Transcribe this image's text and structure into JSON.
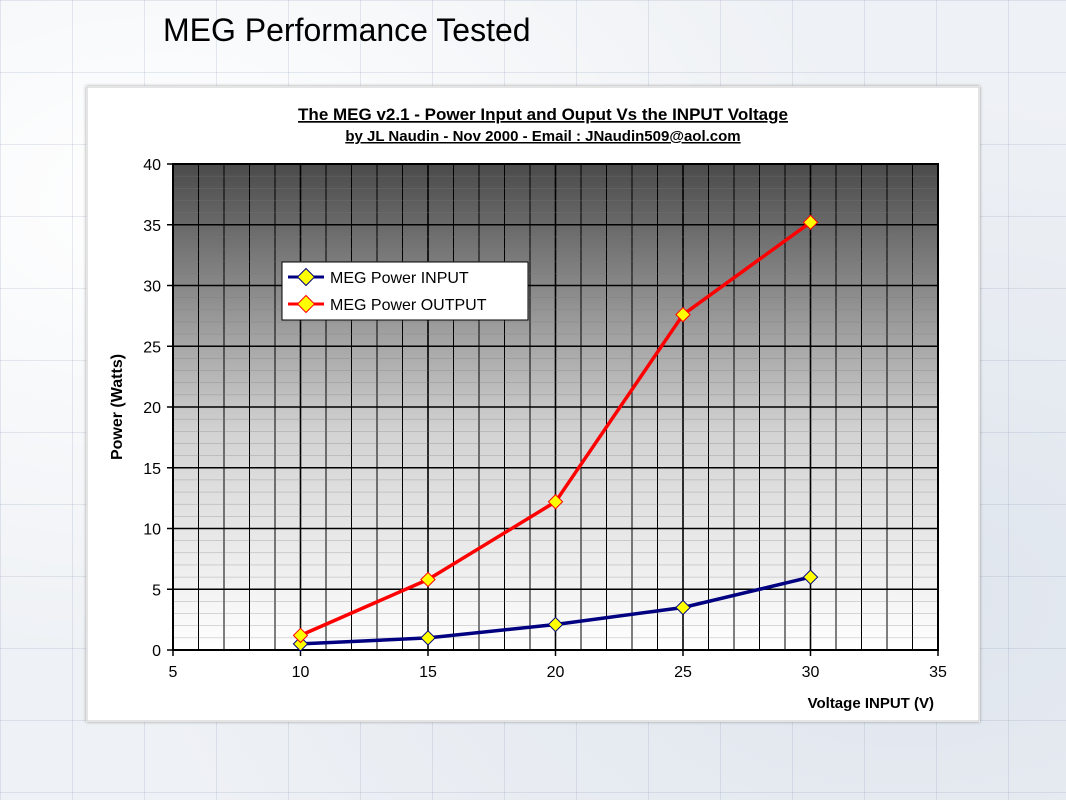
{
  "slide": {
    "title": "MEG Performance Tested"
  },
  "colors": {
    "input_series": "#000080",
    "output_series": "#ff0000",
    "marker_fill": "#ffff00"
  },
  "chart_data": {
    "type": "line",
    "title": "The MEG v2.1 - Power Input and Ouput Vs the INPUT Voltage",
    "subtitle": "by JL Naudin - Nov 2000 - Email : JNaudin509@aol.com",
    "xlabel": "Voltage INPUT (V)",
    "ylabel": "Power (Watts)",
    "xlim": [
      5,
      35
    ],
    "ylim": [
      0,
      40
    ],
    "xticks": [
      5,
      10,
      15,
      20,
      25,
      30,
      35
    ],
    "yticks": [
      0,
      5,
      10,
      15,
      20,
      25,
      30,
      35,
      40
    ],
    "grid": true,
    "legend_position": "upper-left",
    "x": [
      10,
      15,
      20,
      25,
      30
    ],
    "series": [
      {
        "name": "MEG Power INPUT",
        "color": "#000080",
        "values": [
          0.5,
          1.0,
          2.1,
          3.5,
          6.0
        ]
      },
      {
        "name": "MEG Power OUTPUT",
        "color": "#ff0000",
        "values": [
          1.2,
          5.8,
          12.2,
          27.6,
          35.2
        ]
      }
    ]
  }
}
